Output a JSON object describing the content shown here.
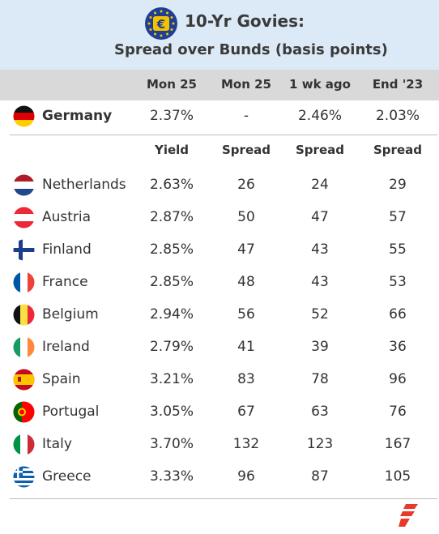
{
  "header": {
    "title": "10-Yr Govies:",
    "subtitle": "Spread over Bunds (basis points)",
    "icon": "euro-icon"
  },
  "columns": [
    "Mon 25",
    "Mon 25",
    "1 wk ago",
    "End '23"
  ],
  "germany": {
    "country": "Germany",
    "flag": "de",
    "values": [
      "2.37%",
      "-",
      "2.46%",
      "2.03%"
    ]
  },
  "subheaders": [
    "Yield",
    "Spread",
    "Spread",
    "Spread"
  ],
  "chart_data": {
    "type": "table",
    "title": "10-Yr Govies:",
    "subtitle": "Spread over Bunds (basis points)",
    "columns": [
      "Mon 25",
      "Mon 25",
      "1 wk ago",
      "End '23"
    ],
    "subheaders": [
      "Yield",
      "Spread",
      "Spread",
      "Spread"
    ],
    "rows": [
      {
        "country": "Netherlands",
        "flag": "nl",
        "yield": "2.63%",
        "spread": [
          26,
          24,
          29
        ]
      },
      {
        "country": "Austria",
        "flag": "at",
        "yield": "2.87%",
        "spread": [
          50,
          47,
          57
        ]
      },
      {
        "country": "Finland",
        "flag": "fi",
        "yield": "2.85%",
        "spread": [
          47,
          43,
          55
        ]
      },
      {
        "country": "France",
        "flag": "fr",
        "yield": "2.85%",
        "spread": [
          48,
          43,
          53
        ]
      },
      {
        "country": "Belgium",
        "flag": "be",
        "yield": "2.94%",
        "spread": [
          56,
          52,
          66
        ]
      },
      {
        "country": "Ireland",
        "flag": "ie",
        "yield": "2.79%",
        "spread": [
          41,
          39,
          36
        ]
      },
      {
        "country": "Spain",
        "flag": "es",
        "yield": "3.21%",
        "spread": [
          83,
          78,
          96
        ]
      },
      {
        "country": "Portugal",
        "flag": "pt",
        "yield": "3.05%",
        "spread": [
          67,
          63,
          76
        ]
      },
      {
        "country": "Italy",
        "flag": "it",
        "yield": "3.70%",
        "spread": [
          132,
          123,
          167
        ]
      },
      {
        "country": "Greece",
        "flag": "gr",
        "yield": "3.33%",
        "spread": [
          96,
          87,
          105
        ]
      }
    ]
  },
  "colors": {
    "header_bg": "#dce9f6",
    "colhead_bg": "#d9d9d9",
    "eu_blue": "#1f3f95",
    "eu_gold": "#f3c300",
    "logo_red": "#e8392a"
  }
}
